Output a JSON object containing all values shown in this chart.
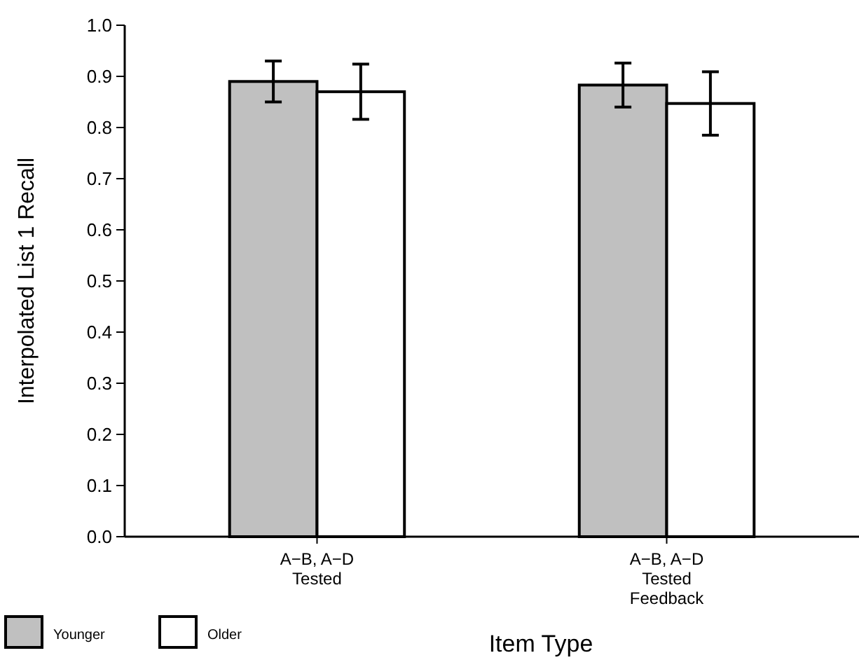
{
  "chart_data": {
    "type": "bar",
    "xlabel": "Item Type",
    "ylabel": "Interpolated List 1 Recall",
    "categories": [
      "A−B, A−D\nTested",
      "A−B, A−D\nTested\nFeedback"
    ],
    "series": [
      {
        "name": "Younger",
        "color": "#c0c0c0",
        "values": [
          0.89,
          0.883
        ],
        "errors": [
          0.04,
          0.043
        ]
      },
      {
        "name": "Older",
        "color": "#ffffff",
        "values": [
          0.87,
          0.847
        ],
        "errors": [
          0.054,
          0.062
        ]
      }
    ],
    "ylim": [
      0,
      1
    ],
    "yticks": [
      {
        "value": 0,
        "label": "0.0"
      },
      {
        "value": 0.1,
        "label": "0.1"
      },
      {
        "value": 0.2,
        "label": "0.2"
      },
      {
        "value": 0.3,
        "label": "0.3"
      },
      {
        "value": 0.4,
        "label": "0.4"
      },
      {
        "value": 0.5,
        "label": "0.5"
      },
      {
        "value": 0.6,
        "label": "0.6"
      },
      {
        "value": 0.7,
        "label": "0.7"
      },
      {
        "value": 0.8,
        "label": "0.8"
      },
      {
        "value": 0.9,
        "label": "0.9"
      },
      {
        "value": 1,
        "label": "1.0"
      }
    ],
    "legend": "bottom left",
    "grid": false
  }
}
